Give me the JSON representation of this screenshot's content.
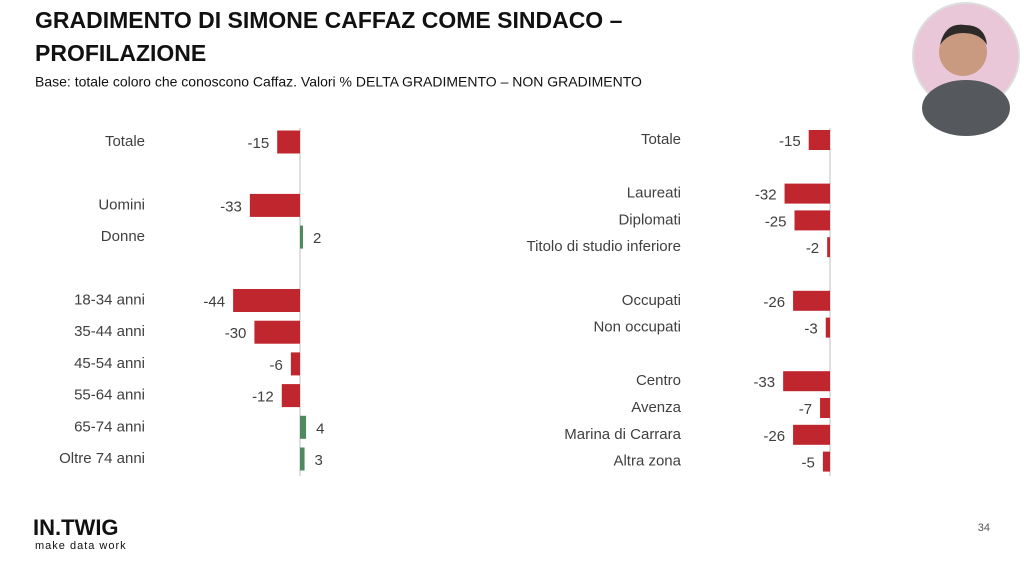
{
  "title_lines": [
    "GRADIMENTO DI SIMONE CAFFAZ COME SINDACO –",
    "PROFILAZIONE"
  ],
  "subtitle": "Base: totale coloro che conoscono Caffaz. Valori % DELTA GRADIMENTO – NON GRADIMENTO",
  "logo": {
    "name": "IN.TWIG",
    "tagline": "make data work"
  },
  "page_number": "34",
  "chart_data": [
    {
      "type": "bar",
      "orientation": "horizontal",
      "color": "#c0262d",
      "positive_color": "#4e8a5e",
      "categories": [
        "Totale",
        null,
        "Uomini",
        "Donne",
        null,
        "18-34 anni",
        "35-44 anni",
        "45-54 anni",
        "55-64 anni",
        "65-74 anni",
        "Oltre 74 anni"
      ],
      "values": [
        -15,
        null,
        -33,
        2,
        null,
        -44,
        -30,
        -6,
        -12,
        4,
        3
      ]
    },
    {
      "type": "bar",
      "orientation": "horizontal",
      "color": "#c0262d",
      "positive_color": "#4e8a5e",
      "categories": [
        "Totale",
        null,
        "Laureati",
        "Diplomati",
        "Titolo di studio inferiore",
        null,
        "Occupati",
        "Non occupati",
        null,
        "Centro",
        "Avenza",
        "Marina di Carrara",
        "Altra zona"
      ],
      "values": [
        -15,
        null,
        -32,
        -25,
        -2,
        null,
        -26,
        -3,
        null,
        -33,
        -7,
        -26,
        -5
      ]
    }
  ]
}
